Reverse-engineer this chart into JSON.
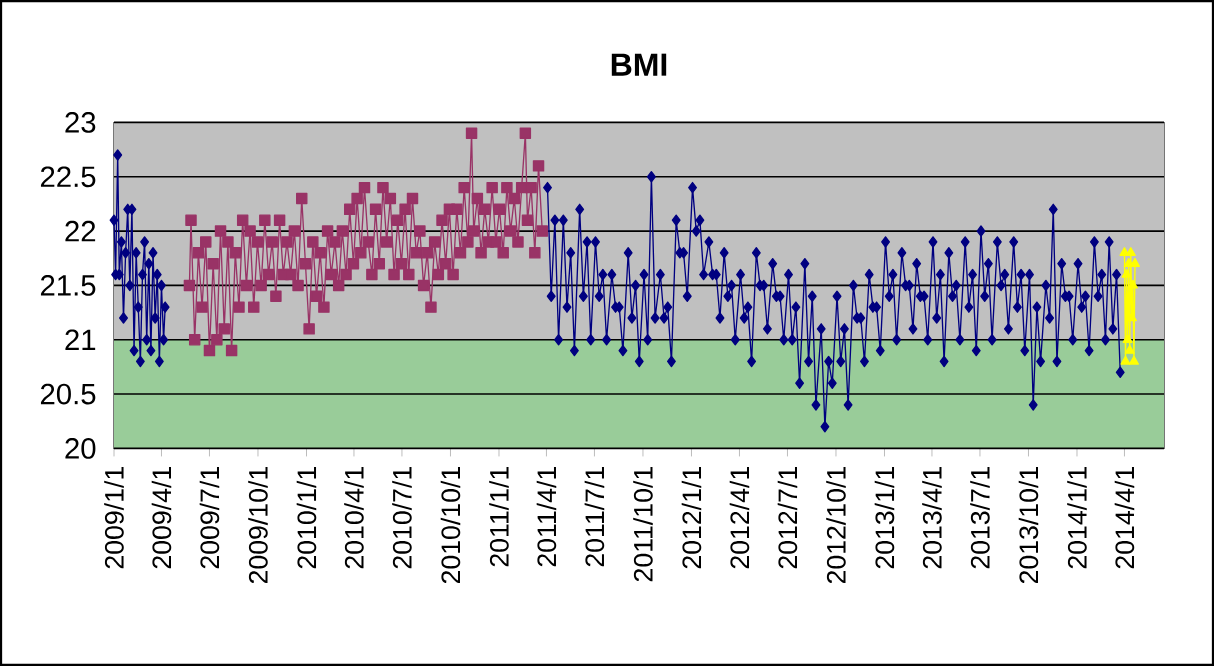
{
  "chart_data": {
    "type": "line",
    "title": "BMI",
    "xlim": [
      "2009-01-01",
      "2014-06-15"
    ],
    "ylim": [
      20,
      23
    ],
    "yticks": [
      20,
      20.5,
      21,
      21.5,
      22,
      22.5,
      23
    ],
    "xticks": [
      {
        "value": "2009-01-01",
        "label": "2009/1/1"
      },
      {
        "value": "2009-04-01",
        "label": "2009/4/1"
      },
      {
        "value": "2009-07-01",
        "label": "2009/7/1"
      },
      {
        "value": "2009-10-01",
        "label": "2009/10/1"
      },
      {
        "value": "2010-01-01",
        "label": "2010/1/1"
      },
      {
        "value": "2010-04-01",
        "label": "2010/4/1"
      },
      {
        "value": "2010-07-01",
        "label": "2010/7/1"
      },
      {
        "value": "2010-10-01",
        "label": "2010/10/1"
      },
      {
        "value": "2011-01-01",
        "label": "2011/1/1"
      },
      {
        "value": "2011-04-01",
        "label": "2011/4/1"
      },
      {
        "value": "2011-07-01",
        "label": "2011/7/1"
      },
      {
        "value": "2011-10-01",
        "label": "2011/10/1"
      },
      {
        "value": "2012-01-01",
        "label": "2012/1/1"
      },
      {
        "value": "2012-04-01",
        "label": "2012/4/1"
      },
      {
        "value": "2012-07-01",
        "label": "2012/7/1"
      },
      {
        "value": "2012-10-01",
        "label": "2012/10/1"
      },
      {
        "value": "2013-01-01",
        "label": "2013/1/1"
      },
      {
        "value": "2013-04-01",
        "label": "2013/4/1"
      },
      {
        "value": "2013-07-01",
        "label": "2013/7/1"
      },
      {
        "value": "2013-10-01",
        "label": "2013/10/1"
      },
      {
        "value": "2014-01-01",
        "label": "2014/1/1"
      },
      {
        "value": "2014-04-01",
        "label": "2014/4/1"
      }
    ],
    "grid": "y",
    "bands": [
      {
        "axis": "y",
        "from": 20,
        "to": 21,
        "color": "#99cc99"
      },
      {
        "axis": "y",
        "from": 21,
        "to": 23,
        "color": "#c0c0c0"
      }
    ],
    "series": [
      {
        "color": "#000080",
        "marker": "diamond",
        "x": [
          "2009-01-01",
          "2009-01-04",
          "2009-01-08",
          "2009-01-11",
          "2009-01-15",
          "2009-01-19",
          "2009-01-23",
          "2009-01-27",
          "2009-01-31",
          "2009-02-04",
          "2009-02-08",
          "2009-02-12",
          "2009-02-16",
          "2009-02-20",
          "2009-02-24",
          "2009-02-28",
          "2009-03-04",
          "2009-03-08",
          "2009-03-12",
          "2009-03-16",
          "2009-03-20",
          "2009-03-24",
          "2009-03-28",
          "2009-04-01",
          "2009-04-05",
          "2009-04-08"
        ],
        "values": [
          22.1,
          21.6,
          22.7,
          21.6,
          21.9,
          21.2,
          21.8,
          22.2,
          21.5,
          22.2,
          20.9,
          21.8,
          21.3,
          20.8,
          21.6,
          21.9,
          21.0,
          21.7,
          20.9,
          21.8,
          21.2,
          21.6,
          20.8,
          21.5,
          21.0,
          21.3
        ]
      },
      {
        "color": "#993366",
        "marker": "square",
        "x": [
          "2009-05-24",
          "2009-05-27",
          "2009-06-03",
          "2009-06-10",
          "2009-06-17",
          "2009-06-24",
          "2009-07-01",
          "2009-07-08",
          "2009-07-15",
          "2009-07-22",
          "2009-07-29",
          "2009-08-05",
          "2009-08-12",
          "2009-08-19",
          "2009-08-26",
          "2009-09-02",
          "2009-09-09",
          "2009-09-16",
          "2009-09-23",
          "2009-09-30",
          "2009-10-07",
          "2009-10-14",
          "2009-10-21",
          "2009-10-28",
          "2009-11-04",
          "2009-11-11",
          "2009-11-18",
          "2009-11-25",
          "2009-12-02",
          "2009-12-09",
          "2009-12-16",
          "2009-12-23",
          "2009-12-30",
          "2010-01-06",
          "2010-01-13",
          "2010-01-20",
          "2010-01-27",
          "2010-02-03",
          "2010-02-10",
          "2010-02-17",
          "2010-02-24",
          "2010-03-03",
          "2010-03-10",
          "2010-03-17",
          "2010-03-24",
          "2010-03-31",
          "2010-04-07",
          "2010-04-14",
          "2010-04-21",
          "2010-04-28",
          "2010-05-05",
          "2010-05-12",
          "2010-05-19",
          "2010-05-26",
          "2010-06-02",
          "2010-06-09",
          "2010-06-16",
          "2010-06-23",
          "2010-06-30",
          "2010-07-07",
          "2010-07-14",
          "2010-07-21",
          "2010-07-28",
          "2010-08-04",
          "2010-08-11",
          "2010-08-18",
          "2010-08-25",
          "2010-09-01",
          "2010-09-08",
          "2010-09-15",
          "2010-09-22",
          "2010-09-29",
          "2010-10-06",
          "2010-10-13",
          "2010-10-20",
          "2010-10-27",
          "2010-11-03",
          "2010-11-10",
          "2010-11-14",
          "2010-11-21",
          "2010-11-28",
          "2010-12-05",
          "2010-12-12",
          "2010-12-19",
          "2010-12-26",
          "2011-01-02",
          "2011-01-09",
          "2011-01-16",
          "2011-01-23",
          "2011-01-30",
          "2011-02-06",
          "2011-02-13",
          "2011-02-20",
          "2011-02-24",
          "2011-03-03",
          "2011-03-10",
          "2011-03-17",
          "2011-03-24"
        ],
        "values": [
          21.5,
          22.1,
          21.0,
          21.8,
          21.3,
          21.9,
          20.9,
          21.7,
          21.0,
          22.0,
          21.1,
          21.9,
          20.9,
          21.8,
          21.3,
          22.1,
          21.5,
          22.0,
          21.3,
          21.9,
          21.5,
          22.1,
          21.6,
          21.9,
          21.4,
          22.1,
          21.6,
          21.9,
          21.6,
          22.0,
          21.5,
          22.3,
          21.7,
          21.1,
          21.9,
          21.4,
          21.8,
          21.3,
          22.0,
          21.6,
          21.9,
          21.5,
          22.0,
          21.6,
          22.2,
          21.7,
          22.3,
          21.8,
          22.4,
          21.9,
          21.6,
          22.2,
          21.7,
          22.4,
          21.9,
          22.3,
          21.6,
          22.1,
          21.7,
          22.2,
          21.6,
          22.3,
          21.8,
          22.0,
          21.5,
          21.8,
          21.3,
          21.9,
          21.6,
          22.1,
          21.7,
          22.2,
          21.6,
          22.2,
          21.8,
          22.4,
          21.9,
          22.9,
          22.0,
          22.3,
          21.8,
          22.2,
          21.9,
          22.4,
          21.9,
          22.2,
          21.8,
          22.4,
          22.0,
          22.3,
          21.9,
          22.4,
          22.9,
          22.1,
          22.4,
          21.8,
          22.6,
          22.0
        ]
      },
      {
        "color": "#000080",
        "marker": "diamond",
        "x": [
          "2011-04-03",
          "2011-04-10",
          "2011-04-17",
          "2011-04-24",
          "2011-05-03",
          "2011-05-10",
          "2011-05-17",
          "2011-05-24",
          "2011-06-03",
          "2011-06-10",
          "2011-06-17",
          "2011-06-24",
          "2011-07-03",
          "2011-07-10",
          "2011-07-17",
          "2011-07-24",
          "2011-08-03",
          "2011-08-10",
          "2011-08-17",
          "2011-08-24",
          "2011-09-03",
          "2011-09-10",
          "2011-09-17",
          "2011-09-24",
          "2011-10-03",
          "2011-10-10",
          "2011-10-17",
          "2011-10-24",
          "2011-11-03",
          "2011-11-10",
          "2011-11-17",
          "2011-11-24",
          "2011-12-03",
          "2011-12-10",
          "2011-12-17",
          "2011-12-24",
          "2012-01-03",
          "2012-01-10",
          "2012-01-17",
          "2012-01-24",
          "2012-02-03",
          "2012-02-10",
          "2012-02-17",
          "2012-02-24",
          "2012-03-03",
          "2012-03-10",
          "2012-03-17",
          "2012-03-24",
          "2012-04-03",
          "2012-04-10",
          "2012-04-17",
          "2012-04-24",
          "2012-05-03",
          "2012-05-10",
          "2012-05-17",
          "2012-05-24",
          "2012-06-03",
          "2012-06-10",
          "2012-06-17",
          "2012-06-24",
          "2012-07-03",
          "2012-07-10",
          "2012-07-17",
          "2012-07-24",
          "2012-08-03",
          "2012-08-10",
          "2012-08-17",
          "2012-08-24",
          "2012-09-03",
          "2012-09-10",
          "2012-09-17",
          "2012-09-24",
          "2012-10-03",
          "2012-10-10",
          "2012-10-17",
          "2012-10-24",
          "2012-11-03",
          "2012-11-10",
          "2012-11-17",
          "2012-11-24",
          "2012-12-03",
          "2012-12-10",
          "2012-12-17",
          "2012-12-24",
          "2013-01-03",
          "2013-01-10",
          "2013-01-17",
          "2013-01-24",
          "2013-02-03",
          "2013-02-10",
          "2013-02-17",
          "2013-02-24",
          "2013-03-03",
          "2013-03-10",
          "2013-03-17",
          "2013-03-24",
          "2013-04-03",
          "2013-04-10",
          "2013-04-17",
          "2013-04-24",
          "2013-05-03",
          "2013-05-10",
          "2013-05-17",
          "2013-05-24",
          "2013-06-03",
          "2013-06-10",
          "2013-06-17",
          "2013-06-24",
          "2013-07-03",
          "2013-07-10",
          "2013-07-17",
          "2013-07-24",
          "2013-08-03",
          "2013-08-10",
          "2013-08-17",
          "2013-08-24",
          "2013-09-03",
          "2013-09-10",
          "2013-09-17",
          "2013-09-24",
          "2013-10-03",
          "2013-10-10",
          "2013-10-17",
          "2013-10-24",
          "2013-11-03",
          "2013-11-10",
          "2013-11-17",
          "2013-11-24",
          "2013-12-03",
          "2013-12-10",
          "2013-12-17",
          "2013-12-24",
          "2014-01-03",
          "2014-01-10",
          "2014-01-17",
          "2014-01-24",
          "2014-02-03",
          "2014-02-10",
          "2014-02-17",
          "2014-02-24",
          "2014-03-03",
          "2014-03-10",
          "2014-03-17",
          "2014-03-24"
        ],
        "values": [
          22.4,
          21.4,
          22.1,
          21.0,
          22.1,
          21.3,
          21.8,
          20.9,
          22.2,
          21.4,
          21.9,
          21.0,
          21.9,
          21.4,
          21.6,
          21.0,
          21.6,
          21.3,
          21.3,
          20.9,
          21.8,
          21.2,
          21.5,
          20.8,
          21.6,
          21.0,
          22.5,
          21.2,
          21.6,
          21.2,
          21.3,
          20.8,
          22.1,
          21.8,
          21.8,
          21.4,
          22.4,
          22.0,
          22.1,
          21.6,
          21.9,
          21.6,
          21.6,
          21.2,
          21.8,
          21.4,
          21.5,
          21.0,
          21.6,
          21.2,
          21.3,
          20.8,
          21.8,
          21.5,
          21.5,
          21.1,
          21.7,
          21.4,
          21.4,
          21.0,
          21.6,
          21.0,
          21.3,
          20.6,
          21.7,
          20.8,
          21.4,
          20.4,
          21.1,
          20.2,
          20.8,
          20.6,
          21.4,
          20.8,
          21.1,
          20.4,
          21.5,
          21.2,
          21.2,
          20.8,
          21.6,
          21.3,
          21.3,
          20.9,
          21.9,
          21.4,
          21.6,
          21.0,
          21.8,
          21.5,
          21.5,
          21.1,
          21.7,
          21.4,
          21.4,
          21.0,
          21.9,
          21.2,
          21.6,
          20.8,
          21.8,
          21.4,
          21.5,
          21.0,
          21.9,
          21.3,
          21.6,
          20.9,
          22.0,
          21.4,
          21.7,
          21.0,
          21.9,
          21.5,
          21.6,
          21.1,
          21.9,
          21.3,
          21.6,
          20.9,
          21.6,
          20.4,
          21.3,
          20.8,
          21.5,
          21.2,
          22.2,
          20.8,
          21.7,
          21.4,
          21.4,
          21.0,
          21.7,
          21.3,
          21.4,
          20.9,
          21.9,
          21.4,
          21.6,
          21.0,
          21.9,
          21.1,
          21.6,
          20.7
        ]
      },
      {
        "color": "#ffff00",
        "marker": "triangle",
        "x": [
          "2014-04-01",
          "2014-04-03",
          "2014-04-05",
          "2014-04-07",
          "2014-04-09",
          "2014-04-11",
          "2014-04-13",
          "2014-04-15",
          "2014-04-17",
          "2014-04-19",
          "2014-04-21"
        ],
        "values": [
          21.8,
          20.8,
          21.6,
          21.0,
          21.7,
          20.9,
          21.8,
          21.2,
          21.5,
          20.8,
          21.7
        ]
      }
    ]
  }
}
